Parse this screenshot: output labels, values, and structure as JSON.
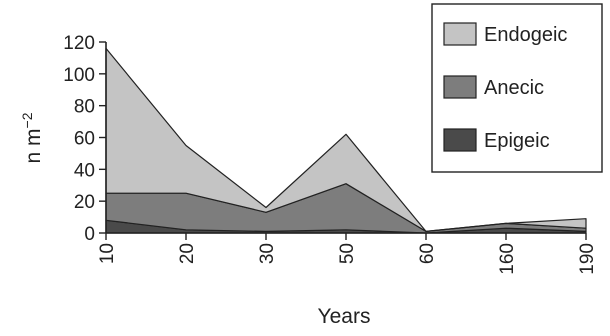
{
  "chart_data": {
    "type": "area",
    "stacked": true,
    "x": [
      "10",
      "20",
      "30",
      "50",
      "60",
      "160",
      "190"
    ],
    "series": [
      {
        "name": "Epigeic",
        "color": "#4a4a4a",
        "values": [
          8,
          2,
          1,
          2,
          0,
          3,
          1
        ]
      },
      {
        "name": "Anecic",
        "color": "#7d7d7d",
        "values": [
          17,
          23,
          12,
          29,
          1,
          3,
          2
        ]
      },
      {
        "name": "Endogeic",
        "color": "#c4c4c4",
        "values": [
          91,
          30,
          3,
          31,
          0,
          0,
          6
        ]
      }
    ],
    "xlabel": "Years",
    "ylabel": "n m−2",
    "ylim": [
      0,
      120
    ],
    "yticks": [
      0,
      20,
      40,
      60,
      80,
      100,
      120
    ],
    "legend_position": "top-right",
    "grid": false
  }
}
